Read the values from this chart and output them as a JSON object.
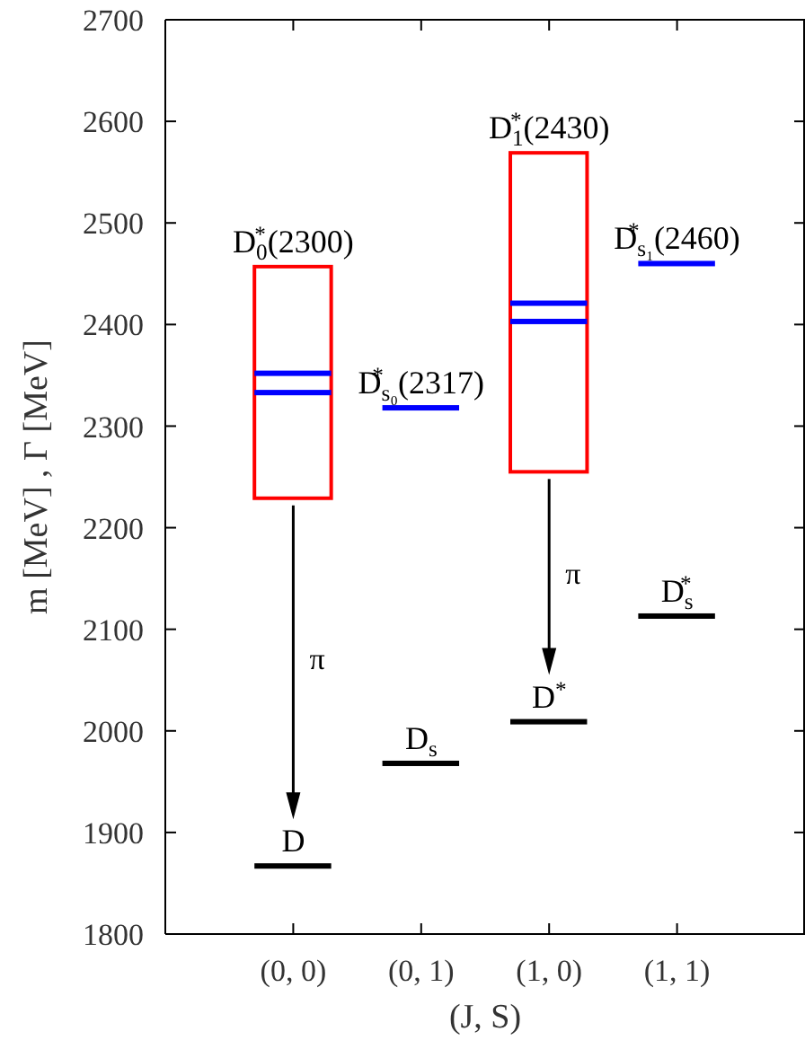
{
  "chart_data": {
    "type": "bar",
    "categories": [
      "(0, 0)",
      "(0, 1)",
      "(1, 0)",
      "(1, 1)"
    ],
    "xlabel": "(J, S)",
    "ylabel": "m [MeV] , Γ [MeV]",
    "ylim": [
      1800,
      2700
    ],
    "yticks": [
      1800,
      1900,
      2000,
      2100,
      2200,
      2300,
      2400,
      2500,
      2600,
      2700
    ],
    "series": [
      {
        "color": "#ff0000",
        "base": [
          2229,
          null,
          2255,
          null
        ],
        "values": [
          228,
          null,
          314,
          null
        ]
      },
      {
        "color": "#0000ff",
        "base": [
          2333,
          2318,
          2403,
          2460
        ],
        "values": [
          0,
          0,
          0,
          0
        ]
      },
      {
        "color": "#0000ff",
        "base": [
          2352,
          null,
          2421,
          null
        ],
        "values": [
          0,
          null,
          0,
          null
        ]
      },
      {
        "color": "#000000",
        "base": [
          1867,
          1968,
          2009,
          2113
        ],
        "values": [
          0,
          0,
          0,
          0
        ]
      }
    ],
    "annotations": [
      {
        "text": "D$_{0}$$^{*}$(2300)",
        "x": "(0, 0)",
        "y": 2457
      },
      {
        "text": "D$_{s₀}$$^{*}$(2317)",
        "x": "(0, 1)",
        "y": 2318
      },
      {
        "text": "D$_{1}$$^{*}$(2430)",
        "x": "(1, 0)",
        "y": 2569
      },
      {
        "text": "D$_{s₁}$$^{*}$(2460)",
        "x": "(1, 1)",
        "y": 2460
      },
      {
        "text": "D",
        "x": "(0, 0)",
        "y": 1867
      },
      {
        "text": "D$_{s}$",
        "x": "(0, 1)",
        "y": 1968
      },
      {
        "text": "D$^{*}$",
        "x": "(1, 0)",
        "y": 2009
      },
      {
        "text": "D$_{s}$$^{*}$",
        "x": "(1, 1)",
        "y": 2113
      },
      "π",
      "π"
    ]
  }
}
